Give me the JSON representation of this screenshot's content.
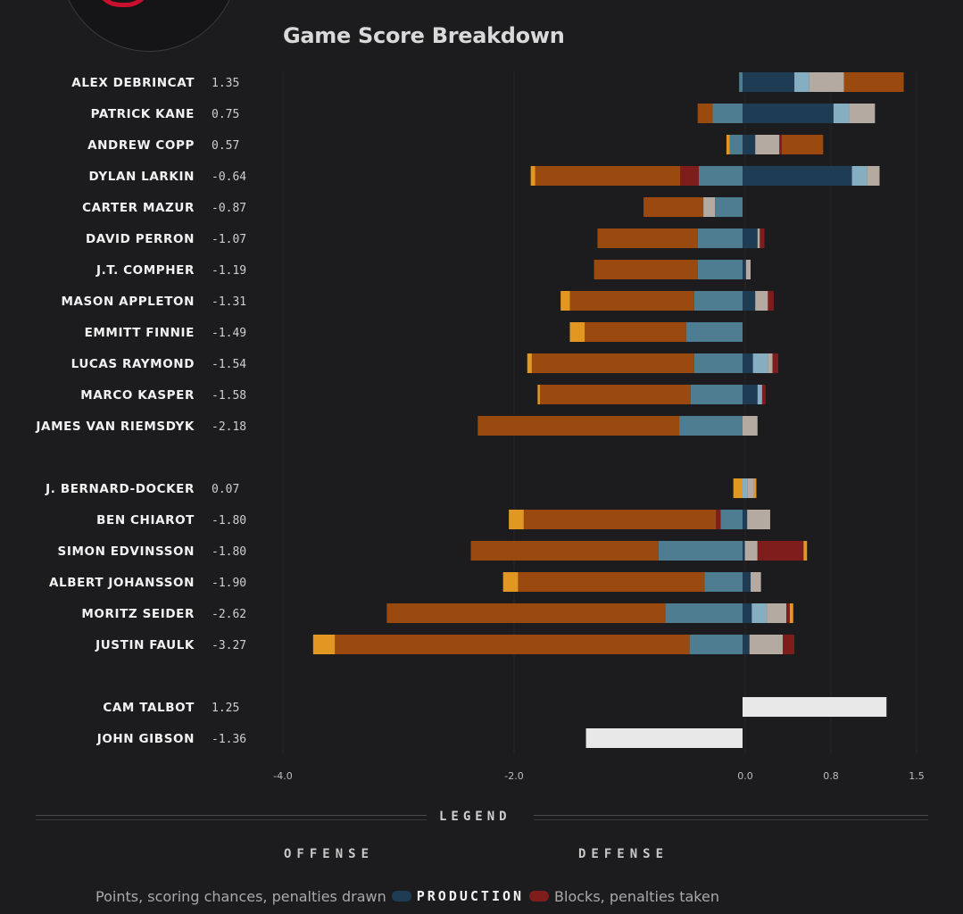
{
  "chart_data": {
    "type": "bar",
    "title": "Game Score Breakdown",
    "xticks": [
      "-4.0",
      "-2.0",
      "0.0",
      "0.8",
      "1.5"
    ],
    "xlim": [
      -4.0,
      1.5
    ],
    "grid": true,
    "colors": {
      "scoring_chances_neg": "#9b4a0f",
      "penalties_neg": "#e39723",
      "production_dark": "#1e3d55",
      "production_light": "#4e7d91",
      "light_blue": "#86aec1",
      "tan": "#b5aaa2",
      "blocks_penalties_taken": "#7f1d1d",
      "goalie": "#e8e8e8"
    },
    "segments_order": [
      "penalty",
      "scoring",
      "blocks",
      "production_light",
      "production",
      "light_blue",
      "tan",
      "blocks_pos",
      "scoring_pos"
    ],
    "rows": [
      {
        "name": "ALEX DEBRINCAT",
        "value": "1.35",
        "neg": [
          {
            "c": "production_light",
            "v": 0.03
          }
        ],
        "pos": [
          {
            "c": "production",
            "v": 0.45
          },
          {
            "c": "light_blue",
            "v": 0.13
          },
          {
            "c": "tan",
            "v": 0.3
          },
          {
            "c": "scoring",
            "v": 0.52
          }
        ]
      },
      {
        "name": "PATRICK KANE",
        "value": "0.75",
        "neg": [
          {
            "c": "scoring",
            "v": 0.13
          },
          {
            "c": "production_light",
            "v": 0.26
          }
        ],
        "pos": [
          {
            "c": "production",
            "v": 0.79
          },
          {
            "c": "light_blue",
            "v": 0.14
          },
          {
            "c": "tan",
            "v": 0.22
          }
        ]
      },
      {
        "name": "ANDREW COPP",
        "value": "0.57",
        "neg": [
          {
            "c": "penalty",
            "v": 0.03
          },
          {
            "c": "production_light",
            "v": 0.11
          }
        ],
        "pos": [
          {
            "c": "production",
            "v": 0.11
          },
          {
            "c": "tan",
            "v": 0.21
          },
          {
            "c": "blocks",
            "v": 0.02
          },
          {
            "c": "scoring",
            "v": 0.36
          }
        ]
      },
      {
        "name": "DYLAN LARKIN",
        "value": "-0.64",
        "neg": [
          {
            "c": "penalty",
            "v": 0.04
          },
          {
            "c": "scoring",
            "v": 1.26
          },
          {
            "c": "blocks",
            "v": 0.16
          },
          {
            "c": "production_light",
            "v": 0.38
          }
        ],
        "pos": [
          {
            "c": "production",
            "v": 0.95
          },
          {
            "c": "light_blue",
            "v": 0.13
          },
          {
            "c": "tan",
            "v": 0.11
          }
        ]
      },
      {
        "name": "CARTER MAZUR",
        "value": "-0.87",
        "neg": [
          {
            "c": "scoring",
            "v": 0.52
          },
          {
            "c": "tan",
            "v": 0.1
          },
          {
            "c": "production_light",
            "v": 0.24
          }
        ],
        "pos": []
      },
      {
        "name": "DAVID PERRON",
        "value": "-1.07",
        "neg": [
          {
            "c": "scoring",
            "v": 0.87
          },
          {
            "c": "production_light",
            "v": 0.39
          }
        ],
        "pos": [
          {
            "c": "production",
            "v": 0.13
          },
          {
            "c": "tan",
            "v": 0.02
          },
          {
            "c": "blocks",
            "v": 0.04
          }
        ]
      },
      {
        "name": "J.T. COMPHER",
        "value": "-1.19",
        "neg": [
          {
            "c": "scoring",
            "v": 0.9
          },
          {
            "c": "production_light",
            "v": 0.39
          }
        ],
        "pos": [
          {
            "c": "production",
            "v": 0.03
          },
          {
            "c": "tan",
            "v": 0.04
          }
        ]
      },
      {
        "name": "MASON APPLETON",
        "value": "-1.31",
        "neg": [
          {
            "c": "penalty",
            "v": 0.08
          },
          {
            "c": "scoring",
            "v": 1.08
          },
          {
            "c": "production_light",
            "v": 0.42
          }
        ],
        "pos": [
          {
            "c": "production",
            "v": 0.11
          },
          {
            "c": "tan",
            "v": 0.11
          },
          {
            "c": "blocks",
            "v": 0.05
          }
        ]
      },
      {
        "name": "EMMITT FINNIE",
        "value": "-1.49",
        "neg": [
          {
            "c": "penalty",
            "v": 0.13
          },
          {
            "c": "scoring",
            "v": 0.88
          },
          {
            "c": "production_light",
            "v": 0.49
          }
        ],
        "pos": []
      },
      {
        "name": "LUCAS RAYMOND",
        "value": "-1.54",
        "neg": [
          {
            "c": "penalty",
            "v": 0.04
          },
          {
            "c": "scoring",
            "v": 1.41
          },
          {
            "c": "production_light",
            "v": 0.42
          }
        ],
        "pos": [
          {
            "c": "production",
            "v": 0.09
          },
          {
            "c": "light_blue",
            "v": 0.13
          },
          {
            "c": "tan",
            "v": 0.04
          },
          {
            "c": "blocks",
            "v": 0.05
          }
        ]
      },
      {
        "name": "MARCO KASPER",
        "value": "-1.58",
        "neg": [
          {
            "c": "penalty",
            "v": 0.02
          },
          {
            "c": "scoring",
            "v": 1.31
          },
          {
            "c": "production_light",
            "v": 0.45
          }
        ],
        "pos": [
          {
            "c": "production",
            "v": 0.13
          },
          {
            "c": "light_blue",
            "v": 0.04
          },
          {
            "c": "blocks",
            "v": 0.03
          }
        ]
      },
      {
        "name": "JAMES VAN RIEMSDYK",
        "value": "-2.18",
        "neg": [
          {
            "c": "scoring",
            "v": 1.75
          },
          {
            "c": "production_light",
            "v": 0.55
          }
        ],
        "pos": [
          {
            "c": "tan",
            "v": 0.13
          }
        ]
      },
      {
        "name": "J. BERNARD-DOCKER",
        "value": "0.07",
        "neg": [
          {
            "c": "penalty",
            "v": 0.08
          }
        ],
        "pos": [
          {
            "c": "light_blue",
            "v": 0.04
          },
          {
            "c": "tan",
            "v": 0.06
          },
          {
            "c": "penalty",
            "v": 0.02
          }
        ]
      },
      {
        "name": "BEN CHIAROT",
        "value": "-1.80",
        "neg": [
          {
            "c": "penalty",
            "v": 0.13
          },
          {
            "c": "scoring",
            "v": 1.67
          },
          {
            "c": "blocks",
            "v": 0.04
          },
          {
            "c": "production_light",
            "v": 0.19
          }
        ],
        "pos": [
          {
            "c": "production",
            "v": 0.04
          },
          {
            "c": "tan",
            "v": 0.2
          }
        ]
      },
      {
        "name": "SIMON EDVINSSON",
        "value": "-1.80",
        "neg": [
          {
            "c": "scoring",
            "v": 1.63
          },
          {
            "c": "production_light",
            "v": 0.73
          }
        ],
        "pos": [
          {
            "c": "production",
            "v": 0.02
          },
          {
            "c": "tan",
            "v": 0.11
          },
          {
            "c": "blocks",
            "v": 0.4
          },
          {
            "c": "penalty",
            "v": 0.03
          }
        ]
      },
      {
        "name": "ALBERT JOHANSSON",
        "value": "-1.90",
        "neg": [
          {
            "c": "penalty",
            "v": 0.13
          },
          {
            "c": "scoring",
            "v": 1.62
          },
          {
            "c": "production_light",
            "v": 0.33
          }
        ],
        "pos": [
          {
            "c": "production",
            "v": 0.07
          },
          {
            "c": "tan",
            "v": 0.09
          }
        ]
      },
      {
        "name": "MORITZ SEIDER",
        "value": "-2.62",
        "neg": [
          {
            "c": "scoring",
            "v": 2.42
          },
          {
            "c": "production_light",
            "v": 0.67
          }
        ],
        "pos": [
          {
            "c": "production",
            "v": 0.08
          },
          {
            "c": "light_blue",
            "v": 0.13
          },
          {
            "c": "tan",
            "v": 0.17
          },
          {
            "c": "blocks",
            "v": 0.03
          },
          {
            "c": "penalty",
            "v": 0.03
          }
        ]
      },
      {
        "name": "JUSTIN FAULK",
        "value": "-3.27",
        "neg": [
          {
            "c": "penalty",
            "v": 0.19
          },
          {
            "c": "scoring",
            "v": 3.08
          },
          {
            "c": "production_light",
            "v": 0.46
          }
        ],
        "pos": [
          {
            "c": "production",
            "v": 0.06
          },
          {
            "c": "tan",
            "v": 0.29
          },
          {
            "c": "blocks",
            "v": 0.1
          }
        ]
      },
      {
        "name": "CAM TALBOT",
        "value": "1.25",
        "neg": [],
        "pos": [
          {
            "c": "goalie",
            "v": 1.25
          }
        ]
      },
      {
        "name": "JOHN GIBSON",
        "value": "-1.36",
        "neg": [
          {
            "c": "goalie",
            "v": 1.36
          }
        ],
        "pos": []
      }
    ],
    "groups": [
      12,
      6,
      2
    ]
  },
  "legend": {
    "title": "LEGEND",
    "offense": "OFFENSE",
    "defense": "DEFENSE",
    "left_text": "Points, scoring chances, penalties drawn",
    "center_text": "PRODUCTION",
    "right_text": "Blocks, penalties taken",
    "left_color": "#1e3d55",
    "right_color": "#7f1d1d"
  }
}
